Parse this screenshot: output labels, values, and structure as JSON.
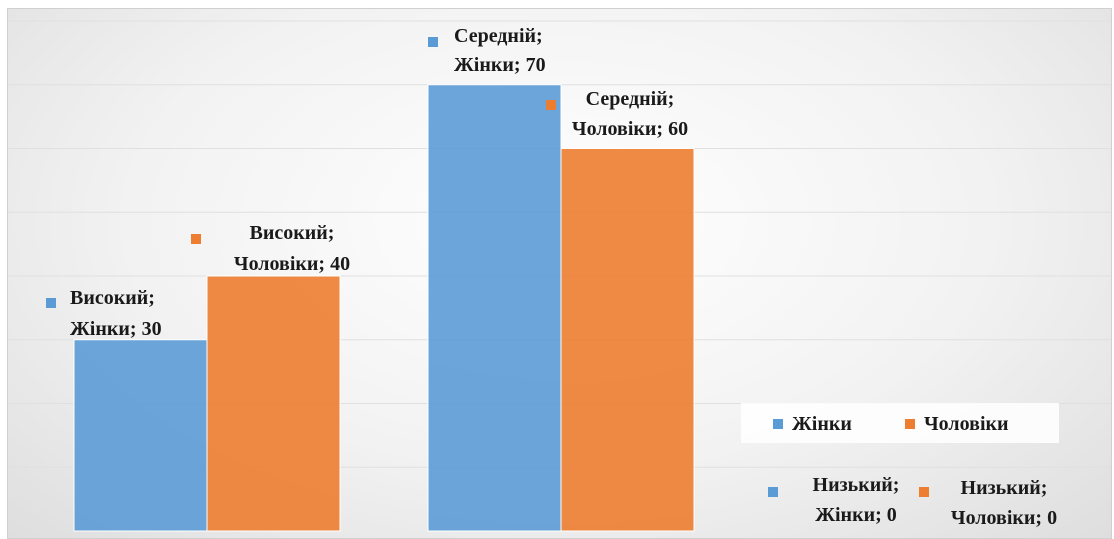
{
  "chart_data": {
    "type": "bar",
    "categories": [
      "Високий",
      "Середній",
      "Низький"
    ],
    "series": [
      {
        "name": "Жінки",
        "color": "#5b9bd5",
        "values": [
          30,
          70,
          0
        ],
        "labels": [
          [
            "Високий;",
            "Жінки; 30"
          ],
          [
            "Середній;",
            "Жінки; 70"
          ],
          [
            "Низький;",
            "Жінки; 0"
          ]
        ]
      },
      {
        "name": "Чоловіки",
        "color": "#ed7d31",
        "values": [
          40,
          60,
          0
        ],
        "labels": [
          [
            "Високий;",
            "Чоловіки; 40"
          ],
          [
            "Середній;",
            "Чоловіки; 60"
          ],
          [
            "Низький;",
            "Чоловіки; 0"
          ]
        ]
      }
    ],
    "ylim": [
      0,
      80
    ],
    "grid": true,
    "legend_position": "right"
  }
}
